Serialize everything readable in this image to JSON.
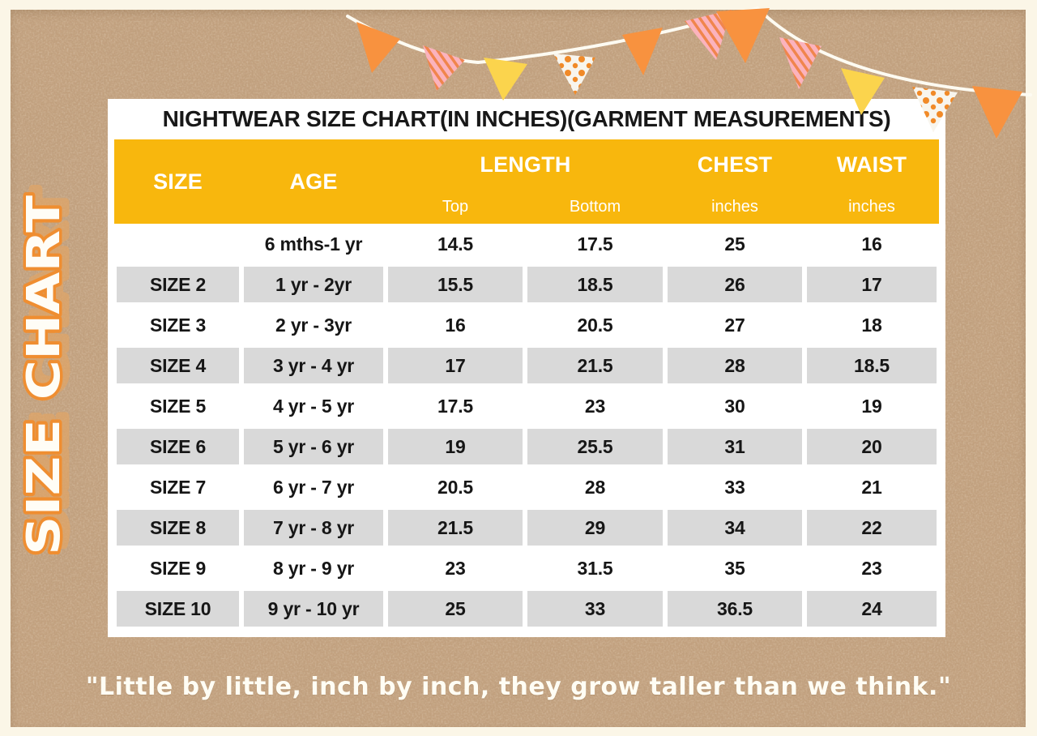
{
  "side_title": "SIZE CHART",
  "quote": "\"Little by little, inch by inch, they grow taller than we think.\"",
  "table": {
    "title": "NIGHTWEAR SIZE CHART(IN INCHES)(GARMENT MEASUREMENTS)",
    "header": {
      "size": "SIZE",
      "age": "AGE",
      "length": "LENGTH",
      "top": "Top",
      "bottom": "Bottom",
      "chest": "CHEST",
      "waist": "WAIST",
      "chest_unit": "inches",
      "waist_unit": "inches"
    },
    "rows": [
      {
        "size": "",
        "age": "6 mths-1 yr",
        "top": "14.5",
        "bottom": "17.5",
        "chest": "25",
        "waist": "16"
      },
      {
        "size": "SIZE 2",
        "age": "1 yr - 2yr",
        "top": "15.5",
        "bottom": "18.5",
        "chest": "26",
        "waist": "17"
      },
      {
        "size": "SIZE 3",
        "age": "2 yr - 3yr",
        "top": "16",
        "bottom": "20.5",
        "chest": "27",
        "waist": "18"
      },
      {
        "size": "SIZE 4",
        "age": "3 yr - 4 yr",
        "top": "17",
        "bottom": "21.5",
        "chest": "28",
        "waist": "18.5"
      },
      {
        "size": "SIZE 5",
        "age": "4 yr - 5 yr",
        "top": "17.5",
        "bottom": "23",
        "chest": "30",
        "waist": "19"
      },
      {
        "size": "SIZE 6",
        "age": "5 yr - 6 yr",
        "top": "19",
        "bottom": "25.5",
        "chest": "31",
        "waist": "20"
      },
      {
        "size": "SIZE 7",
        "age": "6 yr - 7 yr",
        "top": "20.5",
        "bottom": "28",
        "chest": "33",
        "waist": "21"
      },
      {
        "size": "SIZE 8",
        "age": "7 yr - 8 yr",
        "top": "21.5",
        "bottom": "29",
        "chest": "34",
        "waist": "22"
      },
      {
        "size": "SIZE 9",
        "age": "8 yr - 9 yr",
        "top": "23",
        "bottom": "31.5",
        "chest": "35",
        "waist": "23"
      },
      {
        "size": "SIZE 10",
        "age": "9 yr - 10 yr",
        "top": "25",
        "bottom": "33",
        "chest": "36.5",
        "waist": "24"
      }
    ]
  },
  "decor": {
    "bunting_flags": [
      "orange",
      "stripes",
      "yellow",
      "dots",
      "orange",
      "stripes",
      "orange",
      "stripes",
      "yellow",
      "dots",
      "orange"
    ]
  },
  "colors": {
    "header_yellow": "#F8B70D",
    "row_gray": "#D9D9D9",
    "kraft_brown": "#C2A17F",
    "cream_border": "#FBF6E7",
    "text_black": "#181818",
    "flag_orange": "#F8923F",
    "flag_yellow": "#FBD44D",
    "flag_pink": "#FBB3BD",
    "flag_stripe_orange": "#F0854D",
    "flag_dot_bg": "#F8F5ED",
    "flag_dot_orange": "#F18A28",
    "string_white": "#FDFBF2",
    "side_title_orange": "#EF8E31",
    "side_title_shadow": "#DFA568",
    "quote_white": "#FFFDF4"
  }
}
